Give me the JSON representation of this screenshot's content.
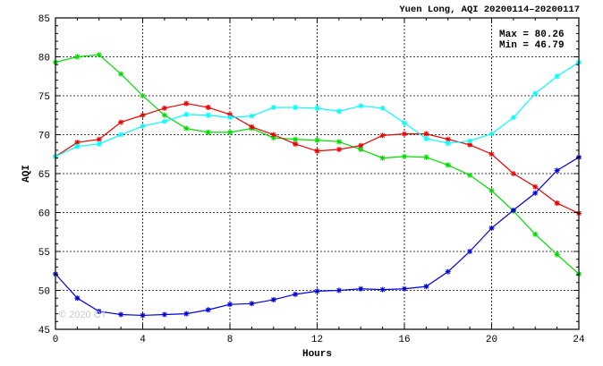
{
  "chart_data": {
    "type": "line",
    "title": "Yuen Long, AQI 20200114–20200117",
    "xlabel": "Hours",
    "ylabel": "AQI",
    "xlim": [
      0,
      24
    ],
    "ylim": [
      45,
      85
    ],
    "x_ticks": [
      0,
      4,
      8,
      12,
      16,
      20,
      24
    ],
    "y_ticks": [
      45,
      50,
      55,
      60,
      65,
      70,
      75,
      80,
      85
    ],
    "grid": true,
    "stats": {
      "max": "Max = 80.26",
      "min": "Min = 46.79"
    },
    "watermark": "© 2020 CT",
    "x": [
      0,
      1,
      2,
      3,
      4,
      5,
      6,
      7,
      8,
      9,
      10,
      11,
      12,
      13,
      14,
      15,
      16,
      17,
      18,
      19,
      20,
      21,
      22,
      23,
      24
    ],
    "series": [
      {
        "color": "#00dd00",
        "values": [
          79.3,
          80.0,
          80.26,
          77.8,
          75.0,
          72.5,
          70.8,
          70.3,
          70.3,
          70.8,
          69.6,
          69.4,
          69.3,
          69.1,
          68.1,
          67.0,
          67.2,
          67.1,
          66.1,
          64.8,
          62.8,
          60.2,
          57.2,
          54.6,
          52.1
        ]
      },
      {
        "color": "#ee0000",
        "values": [
          67.2,
          69.0,
          69.4,
          71.6,
          72.5,
          73.4,
          74.0,
          73.5,
          72.6,
          71.0,
          70.0,
          68.8,
          67.9,
          68.1,
          68.6,
          69.9,
          70.1,
          70.1,
          69.4,
          68.7,
          67.5,
          65.0,
          63.3,
          61.2,
          59.9
        ]
      },
      {
        "color": "#00ffff",
        "values": [
          67.2,
          68.5,
          68.8,
          70.0,
          71.1,
          71.7,
          72.6,
          72.5,
          72.2,
          72.4,
          73.5,
          73.5,
          73.4,
          73.0,
          73.7,
          73.4,
          71.5,
          69.5,
          68.9,
          69.2,
          70.1,
          72.2,
          75.3,
          77.5,
          79.3
        ]
      },
      {
        "color": "#0000dd",
        "values": [
          52.1,
          49.0,
          47.3,
          46.9,
          46.79,
          46.9,
          47.0,
          47.5,
          48.2,
          48.3,
          48.8,
          49.5,
          49.9,
          50.0,
          50.2,
          50.1,
          50.2,
          50.5,
          52.4,
          55.0,
          58.0,
          60.3,
          62.5,
          65.4,
          67.1
        ]
      }
    ]
  }
}
